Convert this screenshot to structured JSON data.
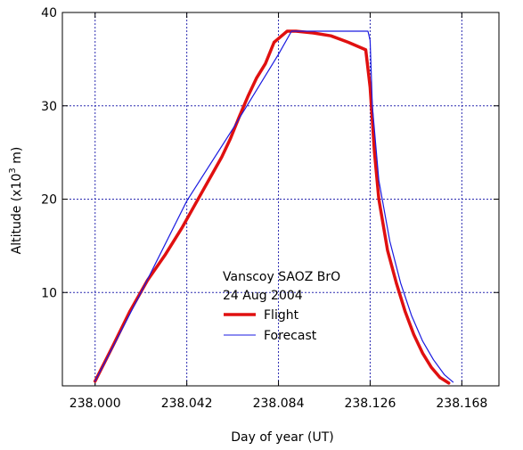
{
  "chart_data": {
    "type": "line",
    "title": "",
    "xlabel": "Day of year (UT)",
    "ylabel_prefix": "Altitude (x10",
    "ylabel_exp": "3",
    "ylabel_suffix": " m)",
    "xlim": [
      237.985,
      238.185
    ],
    "ylim": [
      0,
      40
    ],
    "xticks": [
      238.0,
      238.042,
      238.084,
      238.126,
      238.168
    ],
    "xtick_labels": [
      "238.000",
      "238.042",
      "238.084",
      "238.126",
      "238.168"
    ],
    "yticks": [
      10,
      20,
      30,
      40
    ],
    "ytick_labels": [
      "10",
      "20",
      "30",
      "40"
    ],
    "grid": true,
    "annotation": {
      "line1": "Vanscoy SAOZ BrO",
      "line2": "24 Aug 2004"
    },
    "legend_position": "center-right",
    "series": [
      {
        "name": "Flight",
        "color": "#e01010",
        "x": [
          238.0,
          238.008,
          238.016,
          238.024,
          238.032,
          238.04,
          238.046,
          238.052,
          238.058,
          238.062,
          238.066,
          238.07,
          238.074,
          238.078,
          238.082,
          238.084,
          238.088,
          238.092,
          238.1,
          238.108,
          238.116,
          238.124,
          238.126,
          238.128,
          238.13,
          238.134,
          238.138,
          238.142,
          238.146,
          238.15,
          238.154,
          238.158,
          238.162
        ],
        "y": [
          0.5,
          4.2,
          8.0,
          11.3,
          14.0,
          17.0,
          19.5,
          22.0,
          24.5,
          26.5,
          28.8,
          31.0,
          33.0,
          34.5,
          36.8,
          37.2,
          38.0,
          38.0,
          37.8,
          37.5,
          36.8,
          36.0,
          32.0,
          25.0,
          20.0,
          14.5,
          11.0,
          8.0,
          5.5,
          3.5,
          2.0,
          0.9,
          0.3
        ]
      },
      {
        "name": "Forecast",
        "color": "#1a1ae0",
        "x": [
          238.0,
          238.021,
          238.042,
          238.063,
          238.084,
          238.09,
          238.1,
          238.11,
          238.12,
          238.125,
          238.126,
          238.127,
          238.13,
          238.135,
          238.14,
          238.145,
          238.15,
          238.155,
          238.16,
          238.164
        ],
        "y": [
          0.5,
          10.0,
          19.8,
          27.5,
          35.5,
          38.0,
          38.0,
          38.0,
          38.0,
          38.0,
          37.0,
          30.0,
          22.0,
          15.5,
          11.0,
          7.5,
          4.8,
          2.8,
          1.2,
          0.4
        ]
      }
    ]
  }
}
